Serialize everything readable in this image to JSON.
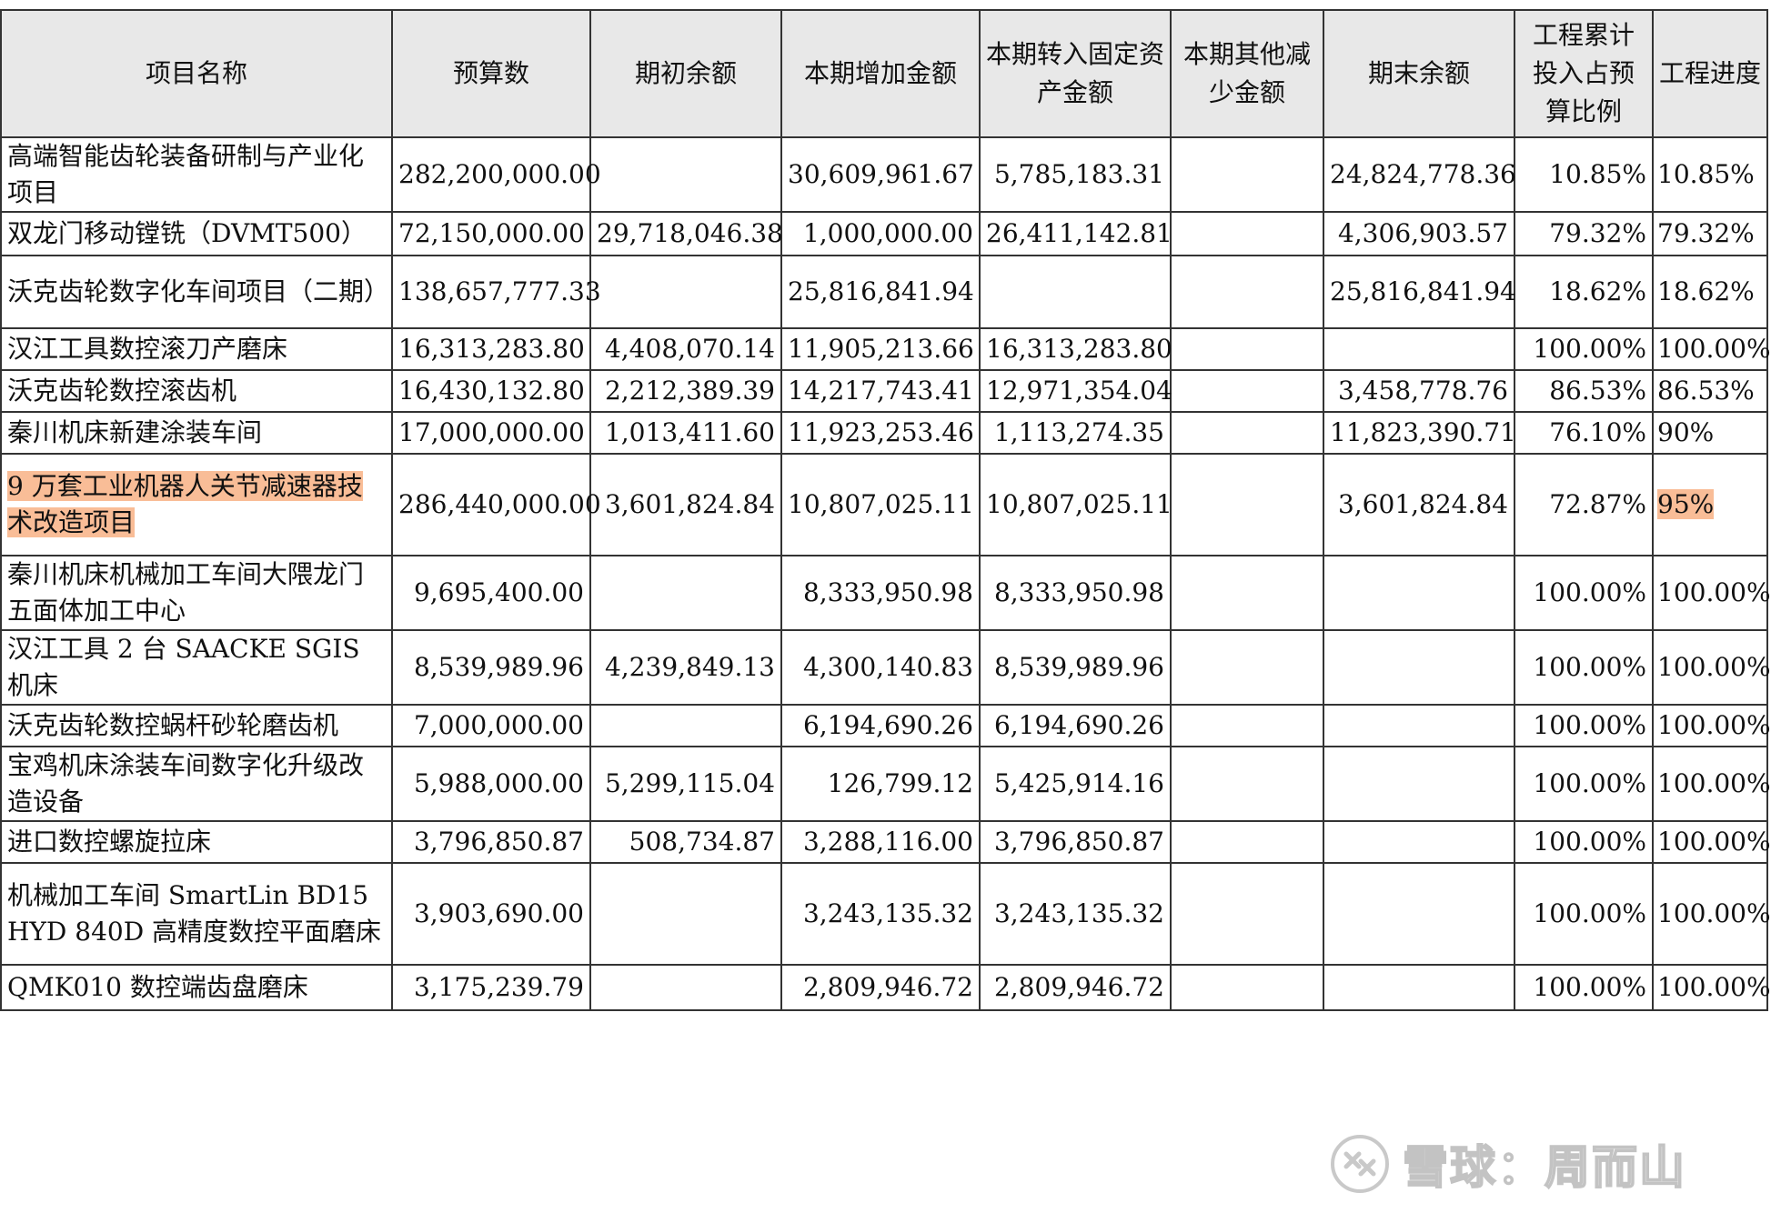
{
  "headers": [
    "项目名称",
    "预算数",
    "期初余额",
    "本期增加金额",
    "本期转入固定资产金额",
    "本期其他减少金额",
    "期末余额",
    "工程累计投入占预算比例",
    "工程进度"
  ],
  "rows": [
    {
      "name": "高端智能齿轮装备研制与产业化项目",
      "budget": "282,200,000.00",
      "opening": "",
      "increase": "30,609,961.67",
      "to_fixed": "5,785,183.31",
      "other_decrease": "",
      "closing": "24,824,778.36",
      "ratio": "10.85%",
      "progress": "10.85%"
    },
    {
      "name": "双龙门移动镗铣（DVMT500）",
      "budget": "72,150,000.00",
      "opening": "29,718,046.38",
      "increase": "1,000,000.00",
      "to_fixed": "26,411,142.81",
      "other_decrease": "",
      "closing": "4,306,903.57",
      "ratio": "79.32%",
      "progress": "79.32%"
    },
    {
      "name": "沃克齿轮数字化车间项目（二期）",
      "budget": "138,657,777.33",
      "opening": "",
      "increase": "25,816,841.94",
      "to_fixed": "",
      "other_decrease": "",
      "closing": "25,816,841.94",
      "ratio": "18.62%",
      "progress": "18.62%"
    },
    {
      "name": "汉江工具数控滚刀产磨床",
      "budget": "16,313,283.80",
      "opening": "4,408,070.14",
      "increase": "11,905,213.66",
      "to_fixed": "16,313,283.80",
      "other_decrease": "",
      "closing": "",
      "ratio": "100.00%",
      "progress": "100.00%"
    },
    {
      "name": "沃克齿轮数控滚齿机",
      "budget": "16,430,132.80",
      "opening": "2,212,389.39",
      "increase": "14,217,743.41",
      "to_fixed": "12,971,354.04",
      "other_decrease": "",
      "closing": "3,458,778.76",
      "ratio": "86.53%",
      "progress": "86.53%"
    },
    {
      "name": "秦川机床新建涂装车间",
      "budget": "17,000,000.00",
      "opening": "1,013,411.60",
      "increase": "11,923,253.46",
      "to_fixed": "1,113,274.35",
      "other_decrease": "",
      "closing": "11,823,390.71",
      "ratio": "76.10%",
      "progress": "90%"
    },
    {
      "name": "9 万套工业机器人关节减速器技术改造项目",
      "budget": "286,440,000.00",
      "opening": "3,601,824.84",
      "increase": "10,807,025.11",
      "to_fixed": "10,807,025.11",
      "other_decrease": "",
      "closing": "3,601,824.84",
      "ratio": "72.87%",
      "progress": "95%",
      "highlight": true
    },
    {
      "name": "秦川机床机械加工车间大隈龙门五面体加工中心",
      "budget": "9,695,400.00",
      "opening": "",
      "increase": "8,333,950.98",
      "to_fixed": "8,333,950.98",
      "other_decrease": "",
      "closing": "",
      "ratio": "100.00%",
      "progress": "100.00%"
    },
    {
      "name": "汉江工具 2 台 SAACKE SGIS 机床",
      "budget": "8,539,989.96",
      "opening": "4,239,849.13",
      "increase": "4,300,140.83",
      "to_fixed": "8,539,989.96",
      "other_decrease": "",
      "closing": "",
      "ratio": "100.00%",
      "progress": "100.00%"
    },
    {
      "name": "沃克齿轮数控蜗杆砂轮磨齿机",
      "budget": "7,000,000.00",
      "opening": "",
      "increase": "6,194,690.26",
      "to_fixed": "6,194,690.26",
      "other_decrease": "",
      "closing": "",
      "ratio": "100.00%",
      "progress": "100.00%"
    },
    {
      "name": "宝鸡机床涂装车间数字化升级改造设备",
      "budget": "5,988,000.00",
      "opening": "5,299,115.04",
      "increase": "126,799.12",
      "to_fixed": "5,425,914.16",
      "other_decrease": "",
      "closing": "",
      "ratio": "100.00%",
      "progress": "100.00%"
    },
    {
      "name": "进口数控螺旋拉床",
      "budget": "3,796,850.87",
      "opening": "508,734.87",
      "increase": "3,288,116.00",
      "to_fixed": "3,796,850.87",
      "other_decrease": "",
      "closing": "",
      "ratio": "100.00%",
      "progress": "100.00%"
    },
    {
      "name": "机械加工车间 SmartLin BD15 HYD 840D 高精度数控平面磨床",
      "budget": "3,903,690.00",
      "opening": "",
      "increase": "3,243,135.32",
      "to_fixed": "3,243,135.32",
      "other_decrease": "",
      "closing": "",
      "ratio": "100.00%",
      "progress": "100.00%"
    },
    {
      "name": "QMK010 数控端齿盘磨床",
      "budget": "3,175,239.79",
      "opening": "",
      "increase": "2,809,946.72",
      "to_fixed": "2,809,946.72",
      "other_decrease": "",
      "closing": "",
      "ratio": "100.00%",
      "progress": "100.00%"
    }
  ],
  "watermark": {
    "text": "雪球：周而山",
    "icon": "snowball-logo-icon"
  },
  "colors": {
    "highlight": "#f9bd97",
    "border": "#333333",
    "header_bg": "#e8e8e8"
  }
}
